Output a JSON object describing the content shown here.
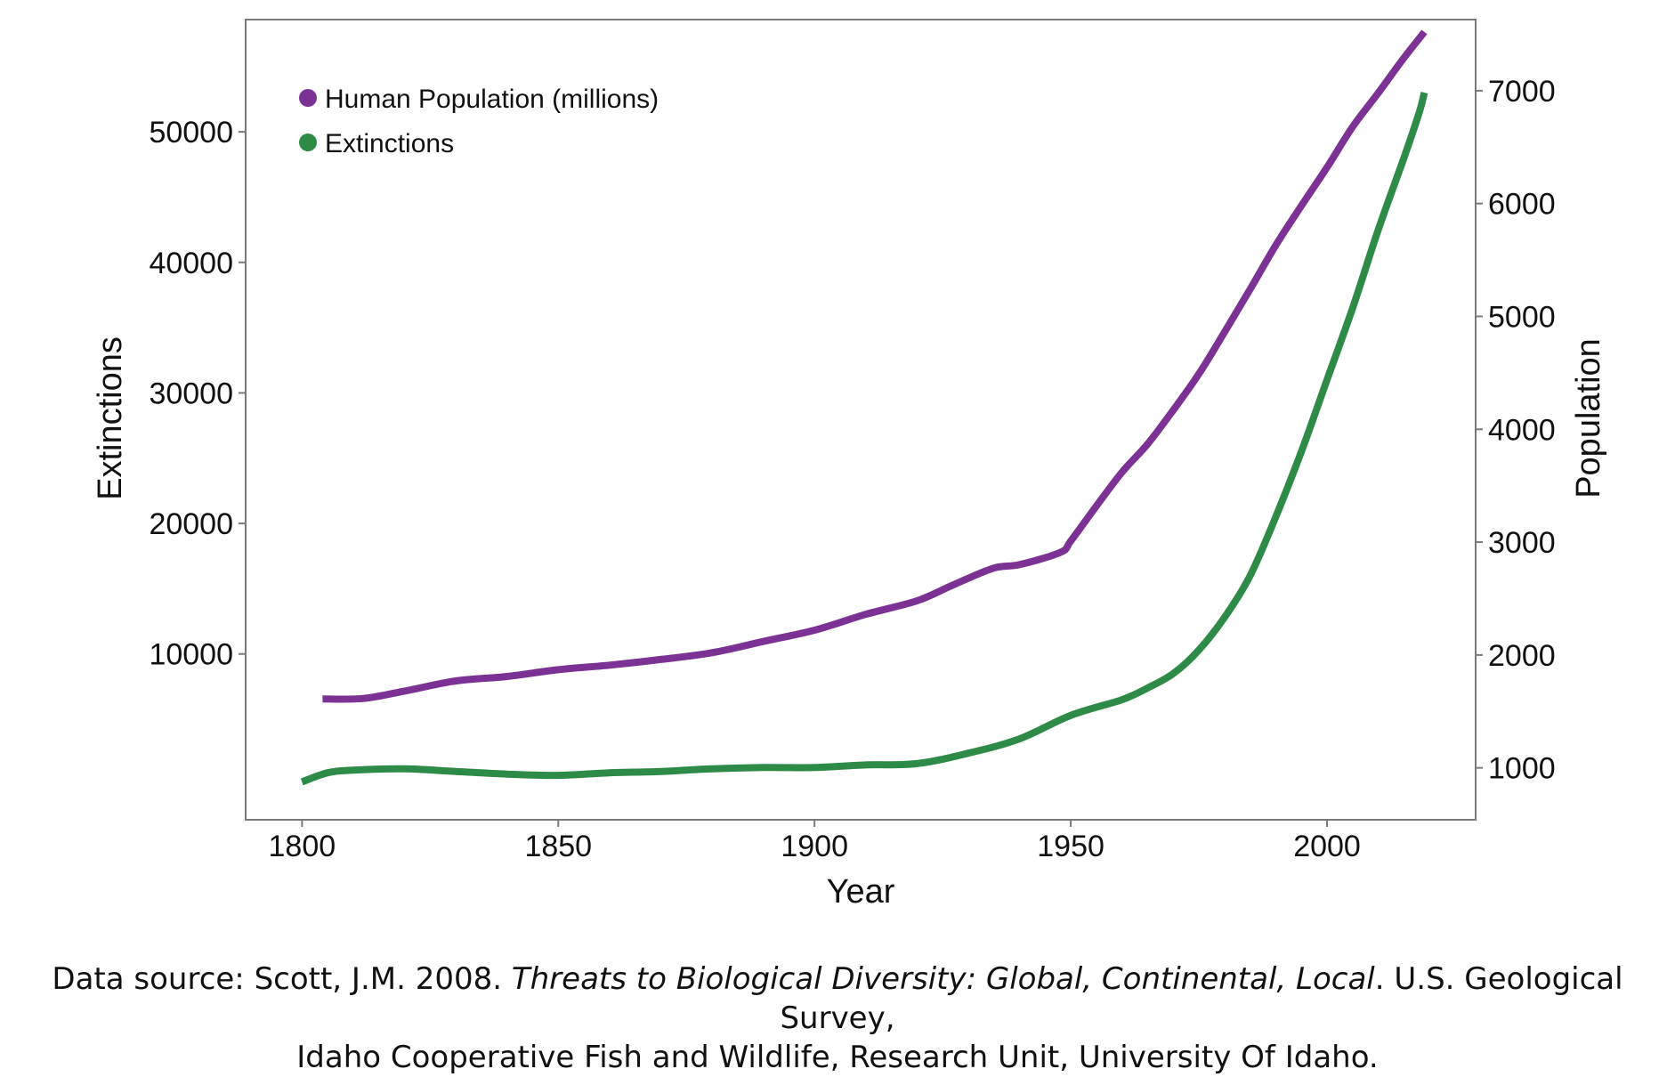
{
  "chart_data": {
    "type": "line",
    "xlabel": "Year",
    "ylabel_left": "Extinctions",
    "ylabel_right": "Population",
    "xlim": [
      1789,
      2029
    ],
    "ylim_left": [
      -2700,
      58600
    ],
    "ylim_right": [
      540,
      7630
    ],
    "x_ticks": [
      1800,
      1850,
      1900,
      1950,
      2000
    ],
    "y_left_ticks": [
      10000,
      20000,
      30000,
      40000,
      50000
    ],
    "y_right_ticks": [
      1000,
      2000,
      3000,
      4000,
      5000,
      6000,
      7000
    ],
    "grid": false,
    "legend_position": "top-left",
    "series": [
      {
        "name": "Human Population (millions)",
        "axis": "right",
        "color": "#7b3294",
        "points": [
          [
            1804,
            1610
          ],
          [
            1812,
            1615
          ],
          [
            1820,
            1680
          ],
          [
            1830,
            1770
          ],
          [
            1840,
            1810
          ],
          [
            1850,
            1870
          ],
          [
            1860,
            1910
          ],
          [
            1870,
            1960
          ],
          [
            1880,
            2020
          ],
          [
            1890,
            2120
          ],
          [
            1900,
            2220
          ],
          [
            1910,
            2360
          ],
          [
            1920,
            2480
          ],
          [
            1927,
            2620
          ],
          [
            1935,
            2770
          ],
          [
            1940,
            2800
          ],
          [
            1948,
            2910
          ],
          [
            1950,
            3010
          ],
          [
            1955,
            3320
          ],
          [
            1960,
            3620
          ],
          [
            1965,
            3870
          ],
          [
            1970,
            4170
          ],
          [
            1975,
            4490
          ],
          [
            1980,
            4860
          ],
          [
            1985,
            5240
          ],
          [
            1990,
            5630
          ],
          [
            1995,
            5980
          ],
          [
            2000,
            6320
          ],
          [
            2005,
            6680
          ],
          [
            2010,
            6980
          ],
          [
            2015,
            7290
          ],
          [
            2019,
            7520
          ]
        ]
      },
      {
        "name": "Extinctions",
        "axis": "left",
        "color": "#2e8b47",
        "points": [
          [
            1800,
            200
          ],
          [
            1805,
            900
          ],
          [
            1810,
            1100
          ],
          [
            1820,
            1200
          ],
          [
            1830,
            1000
          ],
          [
            1840,
            800
          ],
          [
            1850,
            700
          ],
          [
            1860,
            900
          ],
          [
            1870,
            1000
          ],
          [
            1880,
            1200
          ],
          [
            1890,
            1300
          ],
          [
            1900,
            1300
          ],
          [
            1910,
            1500
          ],
          [
            1920,
            1600
          ],
          [
            1930,
            2400
          ],
          [
            1940,
            3500
          ],
          [
            1950,
            5300
          ],
          [
            1960,
            6500
          ],
          [
            1965,
            7400
          ],
          [
            1970,
            8500
          ],
          [
            1975,
            10300
          ],
          [
            1980,
            12800
          ],
          [
            1985,
            16000
          ],
          [
            1990,
            20500
          ],
          [
            1995,
            25500
          ],
          [
            2000,
            31000
          ],
          [
            2005,
            36500
          ],
          [
            2010,
            42500
          ],
          [
            2015,
            48000
          ],
          [
            2018,
            51500
          ],
          [
            2019,
            53000
          ]
        ]
      }
    ]
  },
  "caption": {
    "line1_prefix": "Data source: Scott, J.M. 2008. ",
    "line1_italic": "Threats to Biological Diversity: Global, Continental, Local",
    "line1_suffix": ". U.S. Geological Survey,",
    "line2": "Idaho Cooperative Fish and Wildlife, Research Unit, University Of Idaho."
  }
}
